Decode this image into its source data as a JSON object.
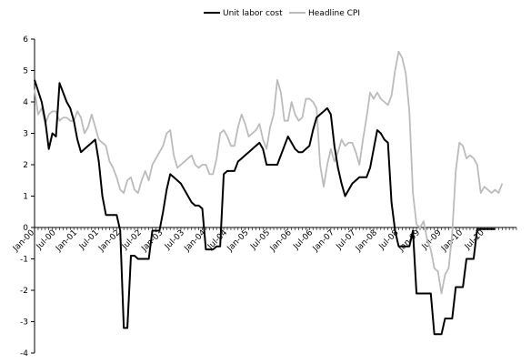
{
  "chart_data": {
    "type": "line",
    "title": "",
    "xlabel": "",
    "ylabel": "",
    "ylim": [
      -4,
      6
    ],
    "yticks": [
      "-4",
      "-3",
      "-2",
      "-1",
      "0",
      "1",
      "2",
      "3",
      "4",
      "5",
      "6"
    ],
    "x_start": "2000-01",
    "x_end": "2011-04",
    "xtick_labels": [
      "Jan-00",
      "Jul-00",
      "Jan-01",
      "Jul-01",
      "Jan-02",
      "Jul-02",
      "Jan-03",
      "Jul-03",
      "Jan-04",
      "Jul-04",
      "Jan-05",
      "Jul-05",
      "Jan-06",
      "Jul-06",
      "Jan-07",
      "Jul-07",
      "Jan-08",
      "Jul-08",
      "Jan-09",
      "Jul-09",
      "Jan-10",
      "Jul-10"
    ],
    "grid": false,
    "legend_position": "top",
    "series": [
      {
        "name": "Unit labor cost",
        "color": "#000000",
        "points": [
          [
            "2000-01",
            4.7
          ],
          [
            "2000-03",
            4.0
          ],
          [
            "2000-04",
            3.4
          ],
          [
            "2000-05",
            2.5
          ],
          [
            "2000-06",
            3.0
          ],
          [
            "2000-07",
            2.9
          ],
          [
            "2000-08",
            4.6
          ],
          [
            "2000-09",
            4.3
          ],
          [
            "2000-10",
            4.0
          ],
          [
            "2000-11",
            3.8
          ],
          [
            "2000-12",
            3.4
          ],
          [
            "2001-01",
            2.8
          ],
          [
            "2001-02",
            2.4
          ],
          [
            "2001-03",
            2.5
          ],
          [
            "2001-04",
            2.6
          ],
          [
            "2001-05",
            2.7
          ],
          [
            "2001-06",
            2.8
          ],
          [
            "2001-07",
            2.1
          ],
          [
            "2001-08",
            1.0
          ],
          [
            "2001-09",
            0.4
          ],
          [
            "2001-10",
            0.4
          ],
          [
            "2001-11",
            0.4
          ],
          [
            "2001-12",
            0.4
          ],
          [
            "2002-01",
            -0.1
          ],
          [
            "2002-02",
            -3.2
          ],
          [
            "2002-03",
            -3.2
          ],
          [
            "2002-04",
            -0.9
          ],
          [
            "2002-05",
            -0.9
          ],
          [
            "2002-06",
            -1.0
          ],
          [
            "2002-07",
            -1.0
          ],
          [
            "2002-08",
            -1.0
          ],
          [
            "2002-09",
            -1.0
          ],
          [
            "2002-10",
            -0.1
          ],
          [
            "2002-11",
            -0.1
          ],
          [
            "2002-12",
            -0.1
          ],
          [
            "2003-01",
            0.5
          ],
          [
            "2003-02",
            1.2
          ],
          [
            "2003-03",
            1.7
          ],
          [
            "2003-04",
            1.6
          ],
          [
            "2003-05",
            1.5
          ],
          [
            "2003-06",
            1.4
          ],
          [
            "2003-07",
            1.2
          ],
          [
            "2003-08",
            1.0
          ],
          [
            "2003-09",
            0.8
          ],
          [
            "2003-10",
            0.7
          ],
          [
            "2003-11",
            0.7
          ],
          [
            "2003-12",
            0.6
          ],
          [
            "2004-01",
            -0.7
          ],
          [
            "2004-02",
            -0.7
          ],
          [
            "2004-03",
            -0.7
          ],
          [
            "2004-04",
            -0.6
          ],
          [
            "2004-05",
            -0.6
          ],
          [
            "2004-06",
            1.7
          ],
          [
            "2004-07",
            1.8
          ],
          [
            "2004-08",
            1.8
          ],
          [
            "2004-09",
            1.8
          ],
          [
            "2004-10",
            2.1
          ],
          [
            "2004-11",
            2.2
          ],
          [
            "2004-12",
            2.3
          ],
          [
            "2005-01",
            2.4
          ],
          [
            "2005-02",
            2.5
          ],
          [
            "2005-03",
            2.6
          ],
          [
            "2005-04",
            2.7
          ],
          [
            "2005-05",
            2.5
          ],
          [
            "2005-06",
            2.0
          ],
          [
            "2005-07",
            2.0
          ],
          [
            "2005-08",
            2.0
          ],
          [
            "2005-09",
            2.0
          ],
          [
            "2005-10",
            2.3
          ],
          [
            "2005-11",
            2.6
          ],
          [
            "2005-12",
            2.9
          ],
          [
            "2006-01",
            2.7
          ],
          [
            "2006-02",
            2.5
          ],
          [
            "2006-03",
            2.4
          ],
          [
            "2006-04",
            2.4
          ],
          [
            "2006-05",
            2.5
          ],
          [
            "2006-06",
            2.6
          ],
          [
            "2006-07",
            3.1
          ],
          [
            "2006-08",
            3.5
          ],
          [
            "2006-09",
            3.6
          ],
          [
            "2006-10",
            3.7
          ],
          [
            "2006-11",
            3.8
          ],
          [
            "2006-12",
            3.6
          ],
          [
            "2007-01",
            2.6
          ],
          [
            "2007-02",
            1.9
          ],
          [
            "2007-03",
            1.4
          ],
          [
            "2007-04",
            1.0
          ],
          [
            "2007-05",
            1.2
          ],
          [
            "2007-06",
            1.4
          ],
          [
            "2007-07",
            1.5
          ],
          [
            "2007-08",
            1.6
          ],
          [
            "2007-09",
            1.6
          ],
          [
            "2007-10",
            1.6
          ],
          [
            "2007-11",
            1.9
          ],
          [
            "2007-12",
            2.5
          ],
          [
            "2008-01",
            3.1
          ],
          [
            "2008-02",
            3.0
          ],
          [
            "2008-03",
            2.8
          ],
          [
            "2008-04",
            2.7
          ],
          [
            "2008-05",
            0.8
          ],
          [
            "2008-06",
            -0.1
          ],
          [
            "2008-07",
            -0.6
          ],
          [
            "2008-08",
            -0.6
          ],
          [
            "2008-09",
            -0.6
          ],
          [
            "2008-10",
            -0.6
          ],
          [
            "2008-11",
            -0.1
          ],
          [
            "2008-12",
            -2.1
          ],
          [
            "2009-01",
            -2.1
          ],
          [
            "2009-02",
            -2.1
          ],
          [
            "2009-03",
            -2.1
          ],
          [
            "2009-04",
            -2.1
          ],
          [
            "2009-05",
            -3.4
          ],
          [
            "2009-06",
            -3.4
          ],
          [
            "2009-07",
            -3.4
          ],
          [
            "2009-08",
            -2.9
          ],
          [
            "2009-09",
            -2.9
          ],
          [
            "2009-10",
            -2.9
          ],
          [
            "2009-11",
            -1.9
          ],
          [
            "2009-12",
            -1.9
          ],
          [
            "2010-01",
            -1.9
          ],
          [
            "2010-02",
            -1.0
          ],
          [
            "2010-03",
            -1.0
          ],
          [
            "2010-04",
            -1.0
          ],
          [
            "2010-05",
            -0.05
          ],
          [
            "2010-06",
            -0.05
          ],
          [
            "2010-07",
            -0.05
          ],
          [
            "2010-08",
            -0.05
          ],
          [
            "2010-09",
            -0.05
          ],
          [
            "2010-10",
            -0.05
          ]
        ]
      },
      {
        "name": "Headline CPI",
        "color": "#bbbbbb",
        "points": [
          [
            "2000-01",
            4.4
          ],
          [
            "2000-02",
            3.6
          ],
          [
            "2000-03",
            3.8
          ],
          [
            "2000-04",
            3.3
          ],
          [
            "2000-05",
            3.6
          ],
          [
            "2000-06",
            3.7
          ],
          [
            "2000-07",
            3.7
          ],
          [
            "2000-08",
            3.4
          ],
          [
            "2000-09",
            3.5
          ],
          [
            "2000-10",
            3.5
          ],
          [
            "2000-11",
            3.4
          ],
          [
            "2000-12",
            3.4
          ],
          [
            "2001-01",
            3.7
          ],
          [
            "2001-02",
            3.5
          ],
          [
            "2001-03",
            3.0
          ],
          [
            "2001-04",
            3.2
          ],
          [
            "2001-05",
            3.6
          ],
          [
            "2001-06",
            3.2
          ],
          [
            "2001-07",
            2.8
          ],
          [
            "2001-08",
            2.7
          ],
          [
            "2001-09",
            2.6
          ],
          [
            "2001-10",
            2.1
          ],
          [
            "2001-11",
            1.9
          ],
          [
            "2001-12",
            1.6
          ],
          [
            "2002-01",
            1.2
          ],
          [
            "2002-02",
            1.1
          ],
          [
            "2002-03",
            1.5
          ],
          [
            "2002-04",
            1.6
          ],
          [
            "2002-05",
            1.2
          ],
          [
            "2002-06",
            1.1
          ],
          [
            "2002-07",
            1.5
          ],
          [
            "2002-08",
            1.8
          ],
          [
            "2002-09",
            1.5
          ],
          [
            "2002-10",
            2.0
          ],
          [
            "2002-11",
            2.2
          ],
          [
            "2002-12",
            2.4
          ],
          [
            "2003-01",
            2.6
          ],
          [
            "2003-02",
            3.0
          ],
          [
            "2003-03",
            3.1
          ],
          [
            "2003-04",
            2.3
          ],
          [
            "2003-05",
            1.9
          ],
          [
            "2003-06",
            2.0
          ],
          [
            "2003-07",
            2.1
          ],
          [
            "2003-08",
            2.2
          ],
          [
            "2003-09",
            2.3
          ],
          [
            "2003-10",
            2.0
          ],
          [
            "2003-11",
            1.9
          ],
          [
            "2003-12",
            2.0
          ],
          [
            "2004-01",
            2.0
          ],
          [
            "2004-02",
            1.7
          ],
          [
            "2004-03",
            1.7
          ],
          [
            "2004-04",
            2.2
          ],
          [
            "2004-05",
            3.0
          ],
          [
            "2004-06",
            3.1
          ],
          [
            "2004-07",
            2.9
          ],
          [
            "2004-08",
            2.6
          ],
          [
            "2004-09",
            2.6
          ],
          [
            "2004-10",
            3.2
          ],
          [
            "2004-11",
            3.6
          ],
          [
            "2004-12",
            3.3
          ],
          [
            "2005-01",
            2.9
          ],
          [
            "2005-02",
            3.0
          ],
          [
            "2005-03",
            3.1
          ],
          [
            "2005-04",
            3.3
          ],
          [
            "2005-05",
            2.8
          ],
          [
            "2005-06",
            2.5
          ],
          [
            "2005-07",
            3.2
          ],
          [
            "2005-08",
            3.6
          ],
          [
            "2005-09",
            4.7
          ],
          [
            "2005-10",
            4.3
          ],
          [
            "2005-11",
            3.4
          ],
          [
            "2005-12",
            3.4
          ],
          [
            "2006-01",
            4.0
          ],
          [
            "2006-02",
            3.6
          ],
          [
            "2006-03",
            3.4
          ],
          [
            "2006-04",
            3.5
          ],
          [
            "2006-05",
            4.1
          ],
          [
            "2006-06",
            4.1
          ],
          [
            "2006-07",
            4.0
          ],
          [
            "2006-08",
            3.8
          ],
          [
            "2006-09",
            2.0
          ],
          [
            "2006-10",
            1.3
          ],
          [
            "2006-11",
            2.0
          ],
          [
            "2006-12",
            2.5
          ],
          [
            "2007-01",
            2.1
          ],
          [
            "2007-02",
            2.4
          ],
          [
            "2007-03",
            2.8
          ],
          [
            "2007-04",
            2.6
          ],
          [
            "2007-05",
            2.7
          ],
          [
            "2007-06",
            2.7
          ],
          [
            "2007-07",
            2.4
          ],
          [
            "2007-08",
            2.0
          ],
          [
            "2007-09",
            2.8
          ],
          [
            "2007-10",
            3.5
          ],
          [
            "2007-11",
            4.3
          ],
          [
            "2007-12",
            4.1
          ],
          [
            "2008-01",
            4.3
          ],
          [
            "2008-02",
            4.1
          ],
          [
            "2008-03",
            4.0
          ],
          [
            "2008-04",
            3.9
          ],
          [
            "2008-05",
            4.2
          ],
          [
            "2008-06",
            5.0
          ],
          [
            "2008-07",
            5.6
          ],
          [
            "2008-08",
            5.4
          ],
          [
            "2008-09",
            4.9
          ],
          [
            "2008-10",
            3.7
          ],
          [
            "2008-11",
            1.1
          ],
          [
            "2008-12",
            0.1
          ],
          [
            "2009-01",
            0.0
          ],
          [
            "2009-02",
            0.2
          ],
          [
            "2009-03",
            -0.4
          ],
          [
            "2009-04",
            -0.7
          ],
          [
            "2009-05",
            -1.3
          ],
          [
            "2009-06",
            -1.4
          ],
          [
            "2009-07",
            -2.1
          ],
          [
            "2009-08",
            -1.5
          ],
          [
            "2009-09",
            -1.3
          ],
          [
            "2009-10",
            -0.2
          ],
          [
            "2009-11",
            1.8
          ],
          [
            "2009-12",
            2.7
          ],
          [
            "2010-01",
            2.6
          ],
          [
            "2010-02",
            2.2
          ],
          [
            "2010-03",
            2.3
          ],
          [
            "2010-04",
            2.2
          ],
          [
            "2010-05",
            2.0
          ],
          [
            "2010-06",
            1.1
          ],
          [
            "2010-07",
            1.3
          ],
          [
            "2010-08",
            1.2
          ],
          [
            "2010-09",
            1.1
          ],
          [
            "2010-10",
            1.2
          ],
          [
            "2010-11",
            1.1
          ],
          [
            "2010-12",
            1.4
          ]
        ]
      }
    ]
  }
}
